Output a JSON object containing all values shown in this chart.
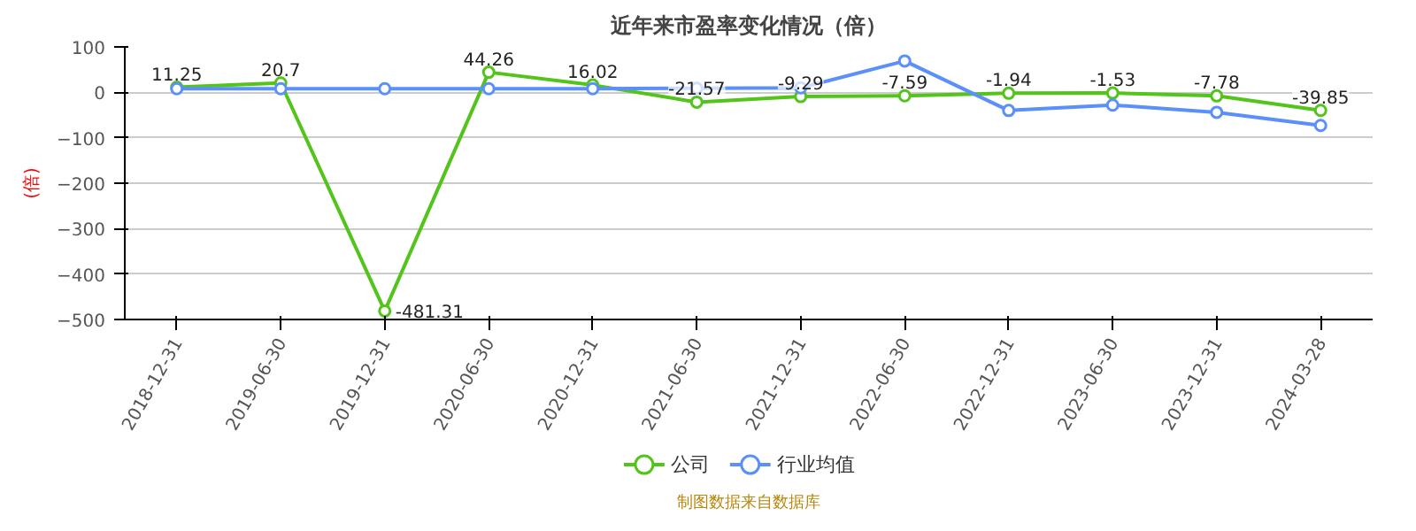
{
  "chart_data": {
    "type": "line",
    "title": "近年来市盈率变化情况（倍）",
    "ylabel": "(倍)",
    "categories": [
      "2018-12-31",
      "2019-06-30",
      "2019-12-31",
      "2020-06-30",
      "2020-12-31",
      "2021-06-30",
      "2021-12-31",
      "2022-06-30",
      "2022-12-31",
      "2023-06-30",
      "2023-12-31",
      "2024-03-28"
    ],
    "series": [
      {
        "name": "公司",
        "color": "#52c41a",
        "values": [
          11.25,
          20.7,
          -481.31,
          44.26,
          16.02,
          -21.57,
          -9.29,
          -7.59,
          -1.94,
          -1.53,
          -7.78,
          -39.85
        ],
        "value_labels": [
          "11.25",
          "20.7",
          "-481.31",
          "44.26",
          "16.02",
          "-21.57",
          "-9.29",
          "-7.59",
          "-1.94",
          "-1.53",
          "-7.78",
          "-39.85"
        ]
      },
      {
        "name": "行业均值",
        "color": "#5b8ff9",
        "values": [
          8,
          8,
          8,
          8,
          8,
          9,
          10,
          69,
          -40,
          -28,
          -44,
          -73
        ]
      }
    ],
    "ylim": [
      -500,
      100
    ],
    "yticks": [
      -500,
      -400,
      -300,
      -200,
      -100,
      0,
      100
    ],
    "grid": "y",
    "legend": "bottom",
    "marker": "circle",
    "line_style": "solid",
    "annotations": [
      "制图数据来自数据库"
    ]
  }
}
